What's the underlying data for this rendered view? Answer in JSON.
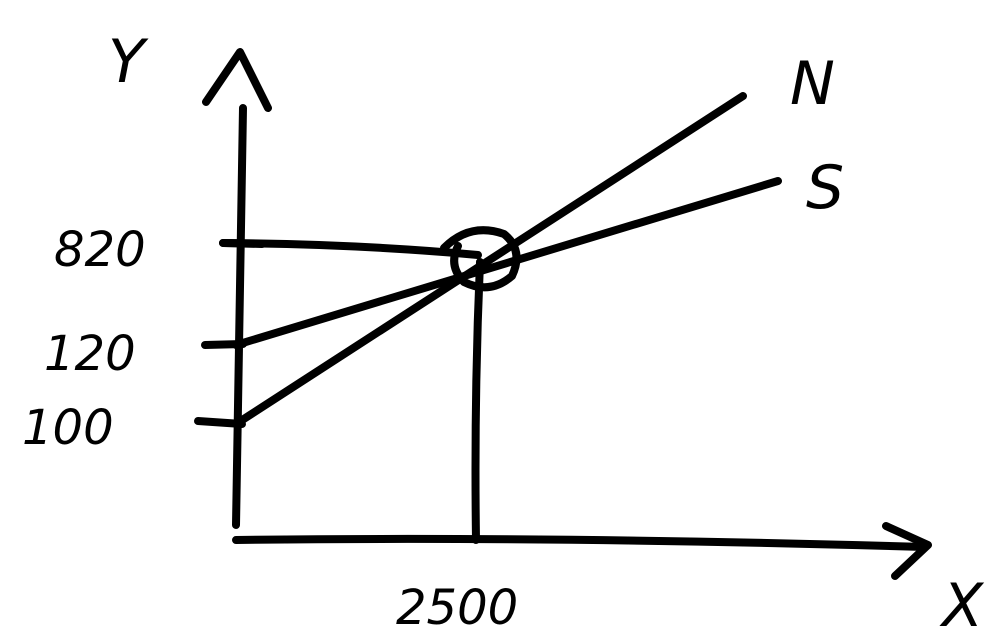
{
  "chart_data": {
    "type": "line",
    "xlabel": "X",
    "ylabel": "Y",
    "ylim": [
      0,
      820
    ],
    "series": [
      {
        "name": "N",
        "intercept": 100,
        "x": [
          0,
          2500
        ],
        "y": [
          100,
          820
        ]
      },
      {
        "name": "S",
        "intercept": 120,
        "x": [
          0,
          2500
        ],
        "y": [
          120,
          820
        ]
      }
    ],
    "y_ticks": [
      "820",
      "120",
      "100"
    ],
    "x_ticks": [
      "2500"
    ],
    "intersection": {
      "x": 2500,
      "y": 820
    },
    "grid": false,
    "style": "hand-drawn sketch",
    "stroke_color": "#000000"
  }
}
